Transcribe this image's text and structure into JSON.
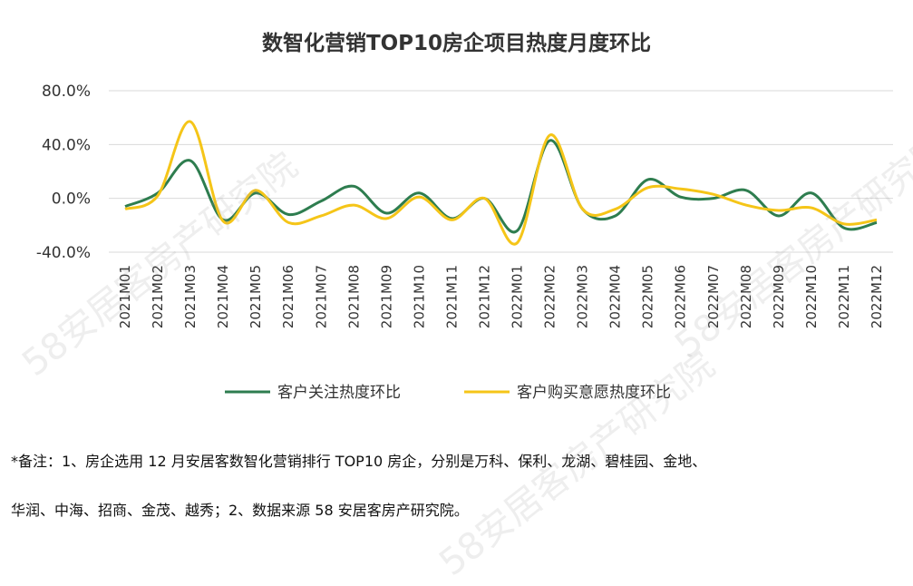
{
  "chart_data": {
    "type": "line",
    "title": "数智化营销TOP10房企项目热度月度环比",
    "categories": [
      "2021M01",
      "2021M02",
      "2021M03",
      "2021M04",
      "2021M05",
      "2021M06",
      "2021M07",
      "2021M08",
      "2021M09",
      "2021M10",
      "2021M11",
      "2021M12",
      "2022M01",
      "2022M02",
      "2022M03",
      "2022M04",
      "2022M05",
      "2022M06",
      "2022M07",
      "2022M08",
      "2022M09",
      "2022M10",
      "2022M11",
      "2022M12"
    ],
    "ylim": [
      -40,
      80
    ],
    "yticks": [
      -40,
      0,
      40,
      80
    ],
    "ytick_labels": [
      "-40.0%",
      "0.0%",
      "40.0%",
      "80.0%"
    ],
    "grid": true,
    "legend_position": "bottom",
    "series": [
      {
        "name": "客户关注热度环比",
        "color": "#2e7d4f",
        "values": [
          -6,
          4,
          28,
          -16,
          4,
          -12,
          -2,
          9,
          -11,
          4,
          -15,
          0,
          -24,
          43,
          -8,
          -13,
          14,
          1,
          0,
          6,
          -13,
          4,
          -22,
          -18
        ]
      },
      {
        "name": "客户购买意愿热度环比",
        "color": "#f5c518",
        "values": [
          -8,
          2,
          57,
          -17,
          6,
          -18,
          -13,
          -5,
          -15,
          1,
          -16,
          0,
          -33,
          47,
          -8,
          -8,
          8,
          7,
          3,
          -5,
          -9,
          -7,
          -19,
          -16
        ]
      }
    ]
  },
  "notes": {
    "line1": "*备注：1、房企选用 12 月安居客数智化营销排行 TOP10 房企，分别是万科、保利、龙湖、碧桂园、金地、",
    "line2": "华润、中海、招商、金茂、越秀；2、数据来源 58 安居客房产研究院。"
  },
  "watermark": "58安居客房产研究院"
}
